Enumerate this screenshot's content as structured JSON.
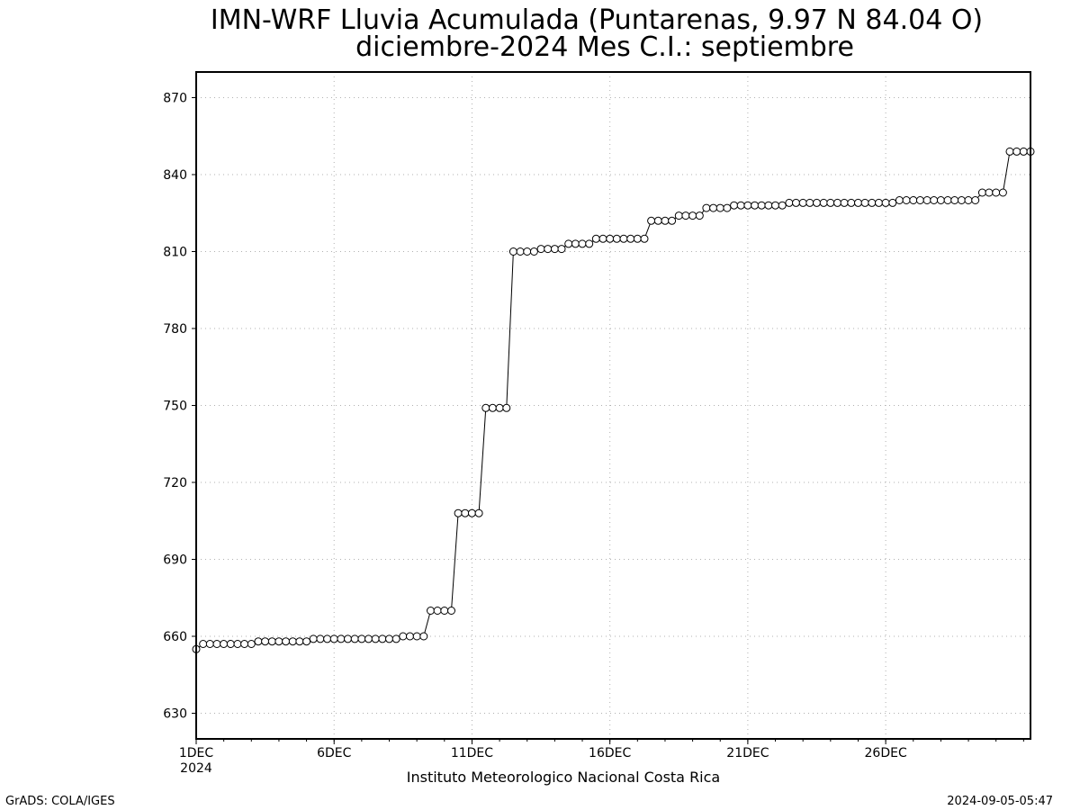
{
  "chart_data": {
    "type": "line",
    "title": "IMN-WRF  Lluvia Acumulada  (Puntarenas, 9.97  N 84.04  O)",
    "subtitle": "diciembre-2024 Mes C.I.: septiembre",
    "credit": "Instituto Meteorologico Nacional Costa Rica",
    "xlabel": "",
    "ylabel": "",
    "ylim": [
      620,
      880
    ],
    "yticks": [
      630,
      660,
      690,
      720,
      750,
      780,
      810,
      840,
      870
    ],
    "ytick_labels": [
      "630",
      "660",
      "690",
      "720",
      "750",
      "780",
      "810",
      "840",
      "870"
    ],
    "xlim_days": [
      1,
      31.25
    ],
    "xticks": [
      {
        "day": 1,
        "label": "1DEC",
        "sublabel": "2024"
      },
      {
        "day": 6,
        "label": "6DEC",
        "sublabel": ""
      },
      {
        "day": 11,
        "label": "11DEC",
        "sublabel": ""
      },
      {
        "day": 16,
        "label": "16DEC",
        "sublabel": ""
      },
      {
        "day": 21,
        "label": "21DEC",
        "sublabel": ""
      },
      {
        "day": 26,
        "label": "26DEC",
        "sublabel": ""
      }
    ],
    "grid": true,
    "marker": "open-circle",
    "x_start": "2024-12-01 00:00",
    "x_step_hours": 6,
    "series": [
      {
        "values": [
          655,
          657,
          657,
          657,
          657,
          657,
          657,
          657,
          657,
          658,
          658,
          658,
          658,
          658,
          658,
          658,
          658,
          659,
          659,
          659,
          659,
          659,
          659,
          659,
          659,
          659,
          659,
          659,
          659,
          659,
          660,
          660,
          660,
          660,
          670,
          670,
          670,
          670,
          708,
          708,
          708,
          708,
          749,
          749,
          749,
          749,
          810,
          810,
          810,
          810,
          811,
          811,
          811,
          811,
          813,
          813,
          813,
          813,
          815,
          815,
          815,
          815,
          815,
          815,
          815,
          815,
          822,
          822,
          822,
          822,
          824,
          824,
          824,
          824,
          827,
          827,
          827,
          827,
          828,
          828,
          828,
          828,
          828,
          828,
          828,
          828,
          829,
          829,
          829,
          829,
          829,
          829,
          829,
          829,
          829,
          829,
          829,
          829,
          829,
          829,
          829,
          829,
          830,
          830,
          830,
          830,
          830,
          830,
          830,
          830,
          830,
          830,
          830,
          830,
          833,
          833,
          833,
          833,
          849,
          849,
          849,
          849
        ]
      }
    ]
  },
  "footer": {
    "left": "GrADS: COLA/IGES",
    "right": "2024-09-05-05:47"
  }
}
